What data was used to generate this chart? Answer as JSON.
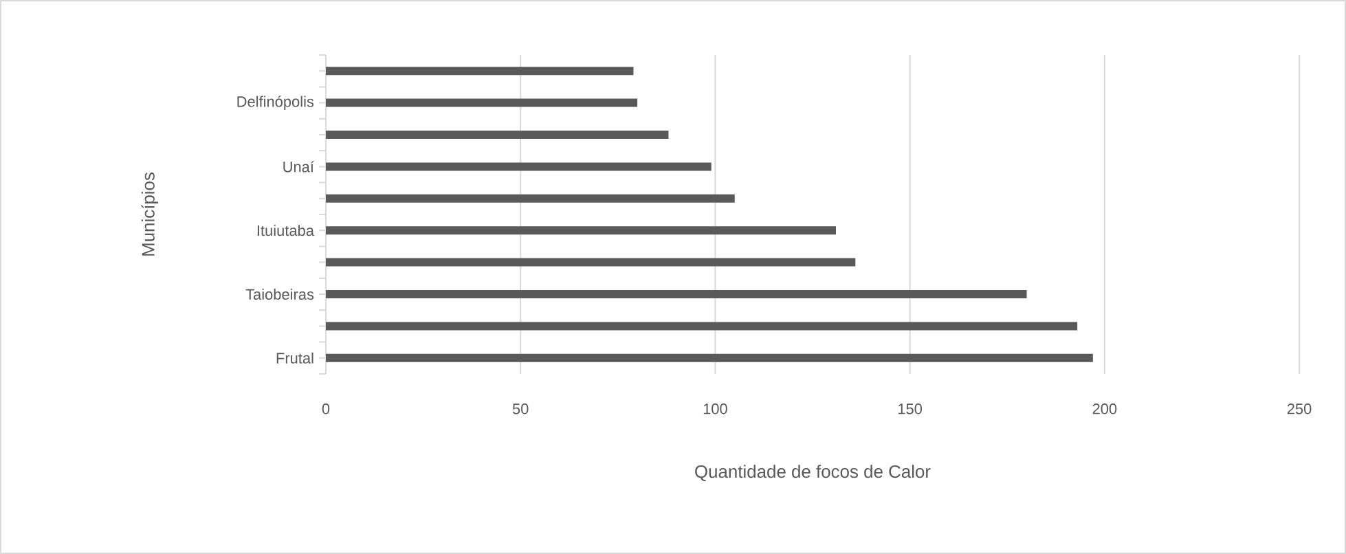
{
  "chart_data": {
    "type": "bar",
    "orientation": "horizontal",
    "categories": [
      null,
      "Delfinópolis",
      null,
      "Unaí",
      null,
      "Ituiutaba",
      null,
      "Taiobeiras",
      null,
      "Frutal"
    ],
    "values": [
      79,
      80,
      88,
      99,
      105,
      131,
      136,
      180,
      193,
      197
    ],
    "color": "#595959",
    "xlim": [
      0,
      250
    ],
    "xticks": [
      0,
      50,
      100,
      150,
      200,
      250
    ],
    "grid": "x",
    "xlabel": "Quantidade de focos de Calor",
    "ylabel": "Municípios"
  }
}
